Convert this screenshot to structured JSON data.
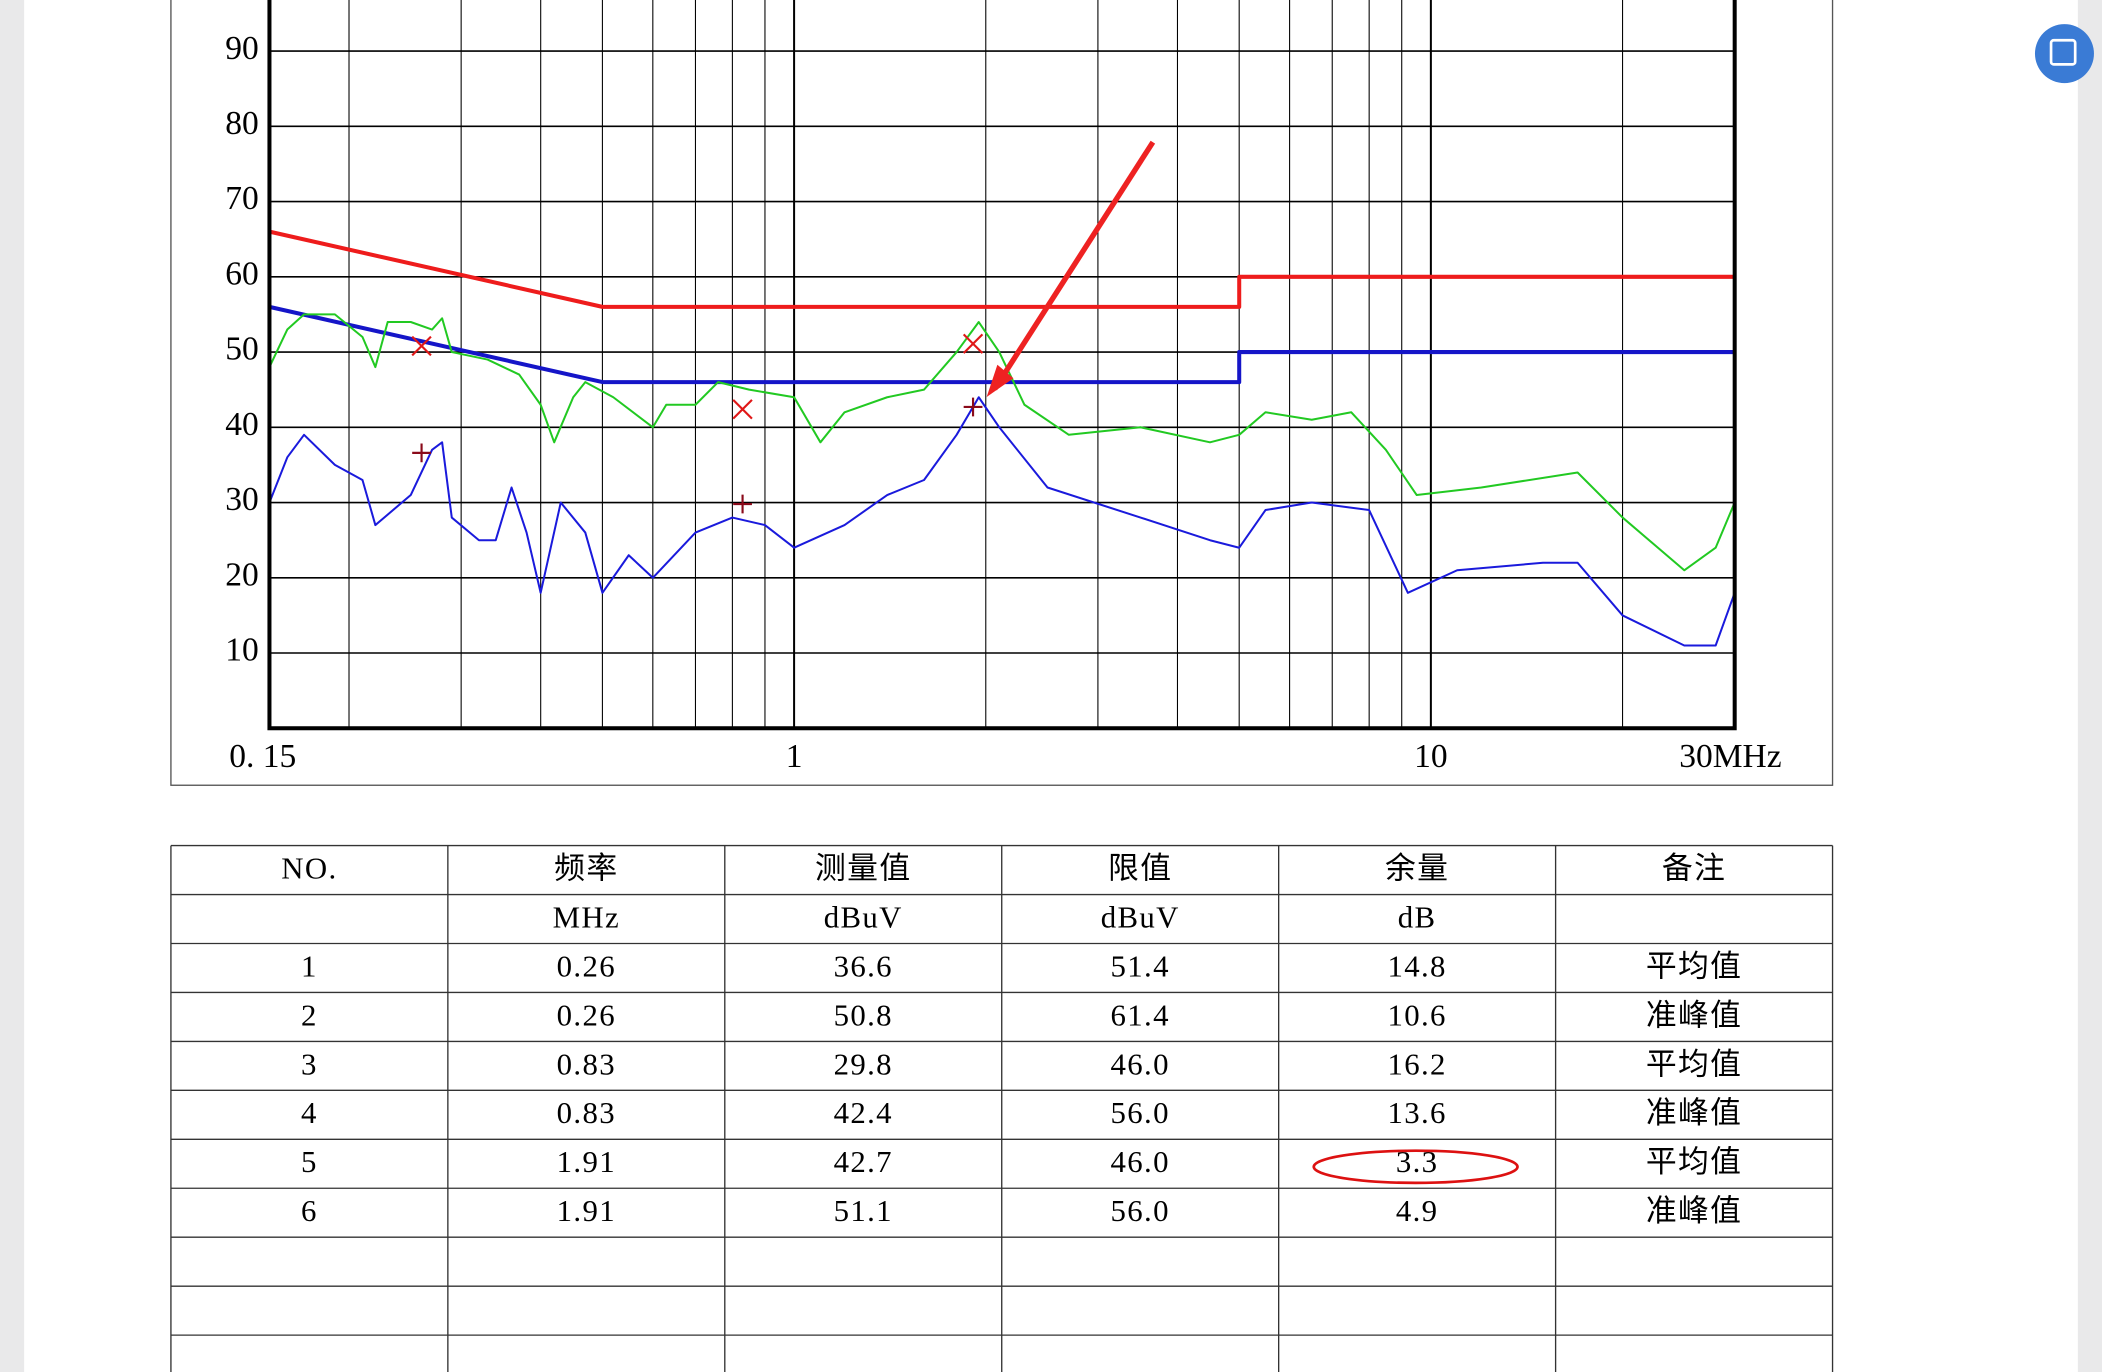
{
  "chart_data": {
    "type": "line",
    "log_x": true,
    "grid": true,
    "xlim": [
      0.15,
      30
    ],
    "ylim": [
      0,
      100
    ],
    "xticks": [
      {
        "value": 0.15,
        "label": "0. 15"
      },
      1,
      10,
      {
        "value": 30,
        "label": "30MHz"
      }
    ],
    "xgrid": [
      0.2,
      0.3,
      0.4,
      0.5,
      0.6,
      0.7,
      0.8,
      0.9,
      1,
      2,
      3,
      4,
      5,
      6,
      7,
      8,
      9,
      10,
      20
    ],
    "yticks": [
      10,
      20,
      30,
      40,
      50,
      60,
      70,
      80,
      90
    ],
    "series": [
      {
        "style": "line",
        "color": "#ee1c1c",
        "width": 3,
        "x": [
          0.15,
          0.5,
          0.5,
          5,
          5,
          30
        ],
        "values": [
          66,
          56,
          56,
          56,
          60,
          60
        ]
      },
      {
        "style": "line",
        "color": "#1515c8",
        "width": 3,
        "x": [
          0.15,
          0.5,
          0.5,
          5,
          5,
          30
        ],
        "values": [
          56,
          46,
          46,
          46,
          50,
          50
        ]
      },
      {
        "style": "line",
        "color": "#22c922",
        "width": 1.5,
        "x": [
          0.15,
          0.16,
          0.17,
          0.19,
          0.21,
          0.22,
          0.23,
          0.25,
          0.27,
          0.28,
          0.29,
          0.33,
          0.37,
          0.4,
          0.42,
          0.45,
          0.47,
          0.52,
          0.6,
          0.63,
          0.7,
          0.76,
          0.85,
          1.0,
          1.1,
          1.2,
          1.4,
          1.6,
          1.8,
          1.95,
          2.1,
          2.3,
          2.7,
          3.5,
          4.5,
          5.0,
          5.5,
          6.5,
          7.5,
          8.5,
          9.5,
          12,
          17,
          20,
          25,
          28,
          30
        ],
        "values": [
          48,
          53,
          55,
          55,
          52,
          48,
          54,
          54,
          53,
          54.5,
          50,
          49,
          47,
          43,
          38,
          44,
          46,
          44,
          40,
          43,
          43,
          46,
          45,
          44,
          38,
          42,
          44,
          45,
          50,
          54,
          50,
          43,
          39,
          40,
          38,
          39,
          42,
          41,
          42,
          37,
          31,
          32,
          34,
          28,
          21,
          24,
          30
        ]
      },
      {
        "style": "line",
        "color": "#1a1adc",
        "width": 1.5,
        "x": [
          0.15,
          0.16,
          0.17,
          0.19,
          0.21,
          0.22,
          0.25,
          0.27,
          0.28,
          0.29,
          0.32,
          0.34,
          0.36,
          0.38,
          0.4,
          0.43,
          0.47,
          0.5,
          0.55,
          0.6,
          0.7,
          0.8,
          0.9,
          1.0,
          1.2,
          1.4,
          1.6,
          1.8,
          1.95,
          2.1,
          2.5,
          3.5,
          4.5,
          5.0,
          5.5,
          6.5,
          8,
          9.2,
          11,
          15,
          17,
          20,
          25,
          28,
          30
        ],
        "values": [
          30,
          36,
          39,
          35,
          33,
          27,
          31,
          37,
          38,
          28,
          25,
          25,
          32,
          26,
          18,
          30,
          26,
          18,
          23,
          20,
          26,
          28,
          27,
          24,
          27,
          31,
          33,
          39,
          44,
          40,
          32,
          28,
          25,
          24,
          29,
          30,
          29,
          18,
          21,
          22,
          22,
          15,
          11,
          11,
          18
        ]
      },
      {
        "style": "x",
        "color": "#e01818",
        "x": [
          0.26,
          0.83,
          1.91
        ],
        "values": [
          50.8,
          42.4,
          51.1
        ]
      },
      {
        "style": "+",
        "color": "#8a0a1a",
        "x": [
          0.26,
          0.83,
          1.91
        ],
        "values": [
          36.6,
          29.8,
          42.7
        ]
      }
    ]
  },
  "table": {
    "header": [
      "NO.",
      "频率",
      "测量值",
      "限值",
      "余量",
      "备注"
    ],
    "units": [
      "MHz",
      "dBuV",
      "dBuV",
      "dB"
    ],
    "rows": [
      [
        "1",
        "0.26",
        "36.6",
        "51.4",
        "14.8",
        "平均值"
      ],
      [
        "2",
        "0.26",
        "50.8",
        "61.4",
        "10.6",
        "准峰值"
      ],
      [
        "3",
        "0.83",
        "29.8",
        "46.0",
        "16.2",
        "平均值"
      ],
      [
        "4",
        "0.83",
        "42.4",
        "56.0",
        "13.6",
        "准峰值"
      ],
      [
        "5",
        "1.91",
        "42.7",
        "46.0",
        "3.3",
        "平均值"
      ],
      [
        "6",
        "1.91",
        "51.1",
        "56.0",
        "4.9",
        "准峰值"
      ]
    ]
  }
}
